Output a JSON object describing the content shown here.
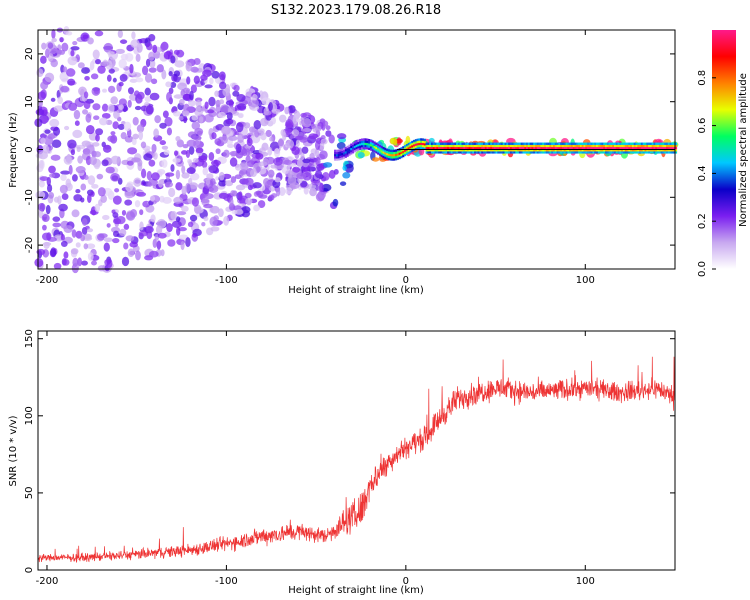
{
  "title": "S132.2023.179.08.26.R18",
  "chart_data": [
    {
      "type": "heatmap",
      "xlabel": "Height of straight line (km)",
      "ylabel": "Frequency (Hz)",
      "xlim": [
        -205,
        150
      ],
      "ylim": [
        -25,
        25
      ],
      "xticks": [
        -200,
        -100,
        0,
        100
      ],
      "yticks": [
        -20,
        -10,
        0,
        10,
        20
      ],
      "colorbar": {
        "label": "Normalized spectral amplitude",
        "range": [
          0.0,
          1.0
        ],
        "ticks": [
          0.0,
          0.2,
          0.4,
          0.6,
          0.8
        ],
        "tick_labels": [
          "0.0",
          "0.2",
          "0.4",
          "0.6",
          "0.8"
        ],
        "colormap": [
          "#ffffff",
          "#c8a8f0",
          "#7a1ef0",
          "#0a00c8",
          "#00c8ff",
          "#00ff60",
          "#e8ff00",
          "#ff8000",
          "#ff0000",
          "#ff1a8a"
        ]
      },
      "description_points": [
        {
          "x": -150,
          "noise_band": [
            -25,
            25
          ],
          "level": 0.15
        },
        {
          "x": -60,
          "noise_band": [
            -8,
            8
          ],
          "level": 0.25
        },
        {
          "x": -40,
          "noise_band": [
            -12,
            5
          ],
          "level": 0.35
        },
        {
          "x": -30,
          "noise_band": [
            -3,
            2
          ],
          "level": 0.4
        },
        {
          "x": 0,
          "noise_band": [
            -1,
            2
          ],
          "level": 0.9
        },
        {
          "x": 100,
          "noise_band": [
            -1,
            1.5
          ],
          "level": 1.0
        },
        {
          "x": 150,
          "noise_band": [
            -1,
            1.5
          ],
          "level": 1.0
        }
      ],
      "grid": false,
      "legend": "none"
    },
    {
      "type": "line",
      "xlabel": "Height of straight line (km)",
      "ylabel": "SNR (10 * v/v)",
      "xlim": [
        -205,
        150
      ],
      "ylim": [
        0,
        155
      ],
      "xticks": [
        -200,
        -100,
        0,
        100
      ],
      "yticks": [
        0,
        50,
        100,
        150
      ],
      "series": [
        {
          "color": "#ee3333",
          "x": [
            -205,
            -180,
            -150,
            -120,
            -100,
            -80,
            -60,
            -45,
            -35,
            -25,
            -20,
            -15,
            -10,
            0,
            10,
            20,
            30,
            50,
            70,
            100,
            120,
            140,
            150
          ],
          "values": [
            8,
            8,
            10,
            13,
            17,
            22,
            25,
            22,
            30,
            38,
            55,
            63,
            70,
            80,
            85,
            100,
            112,
            118,
            115,
            118,
            115,
            118,
            112
          ],
          "spread": [
            6,
            6,
            8,
            10,
            12,
            14,
            14,
            12,
            20,
            30,
            25,
            20,
            18,
            18,
            18,
            20,
            20,
            18,
            18,
            16,
            16,
            16,
            18
          ]
        }
      ],
      "grid": false,
      "legend": "none"
    }
  ]
}
